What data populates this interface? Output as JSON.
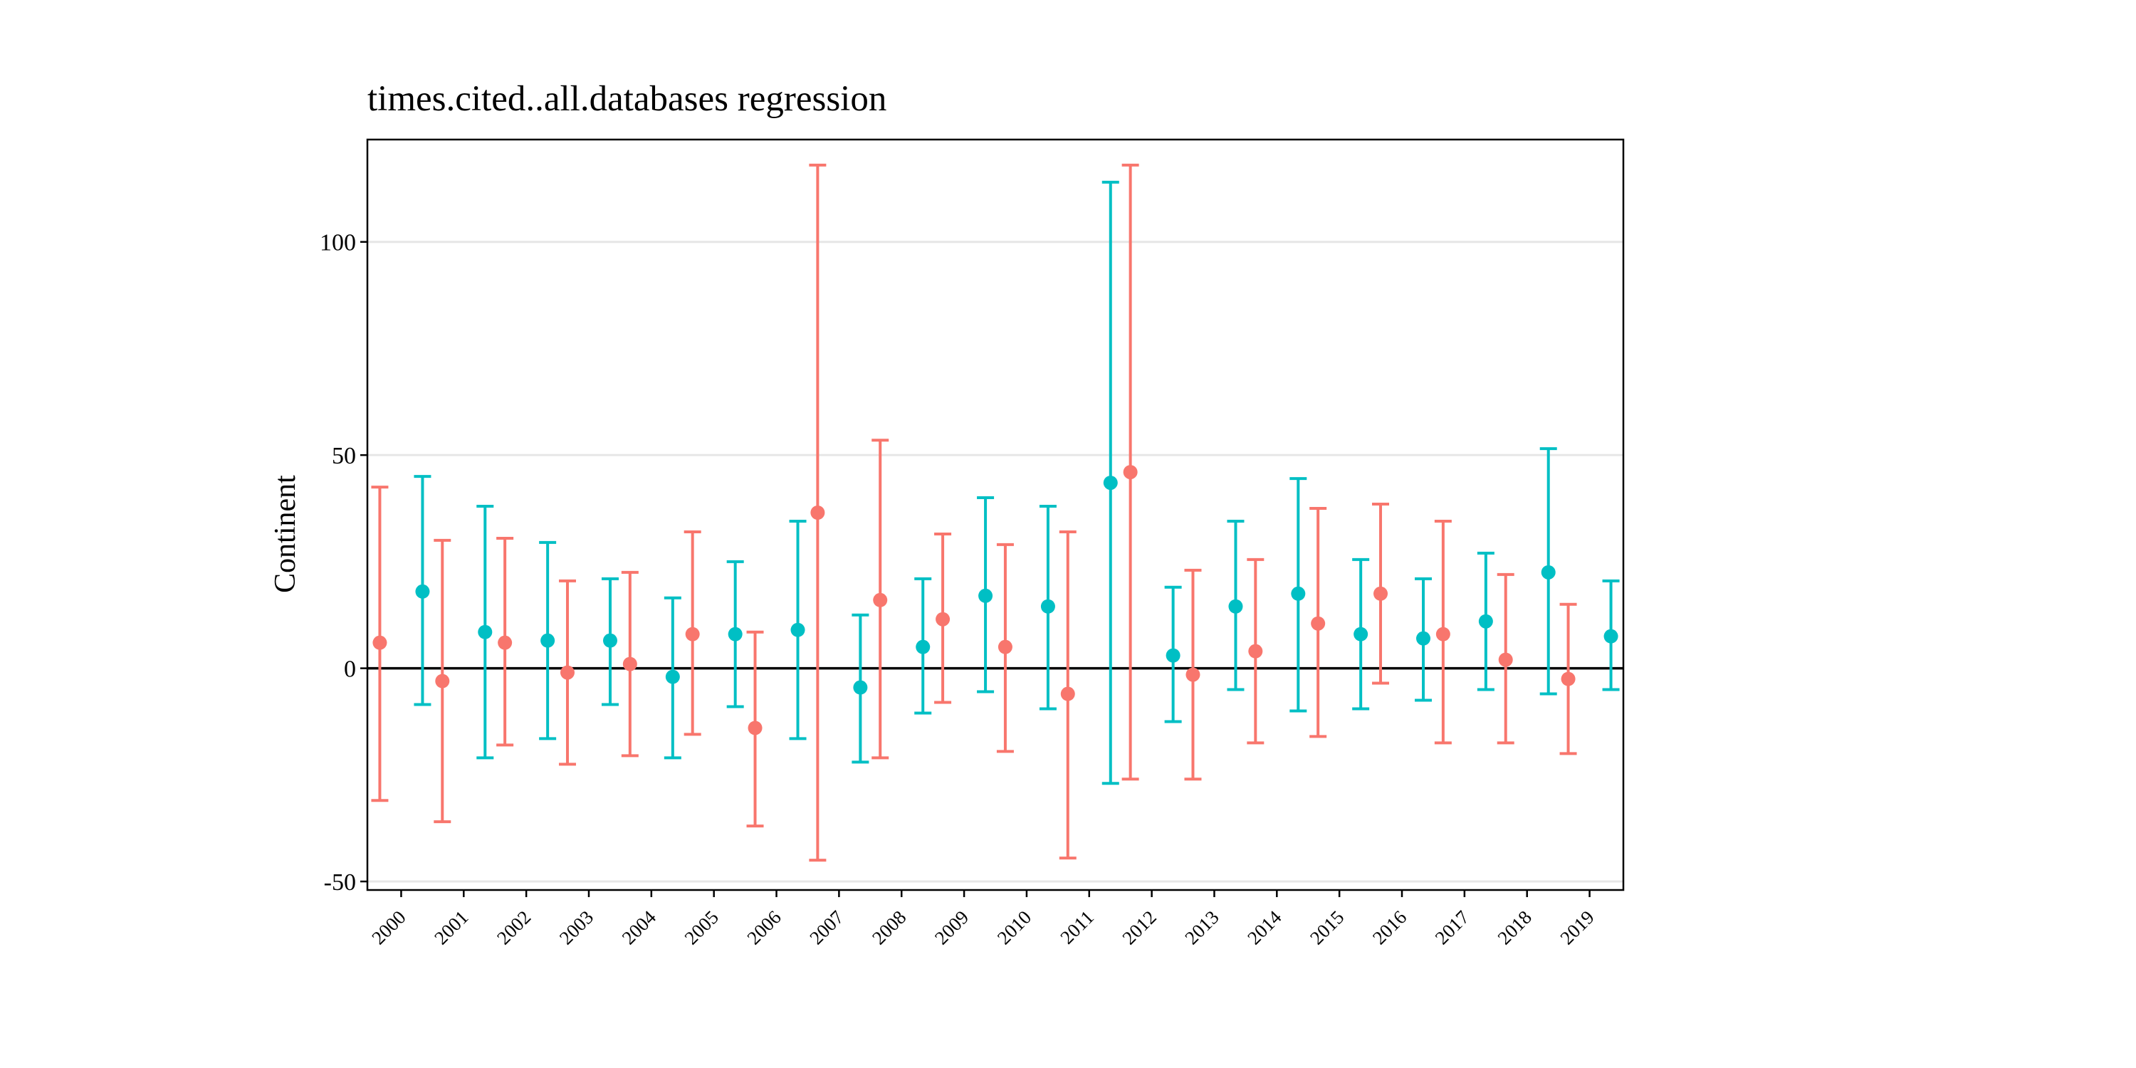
{
  "chart_data": {
    "type": "scatter",
    "subtype": "point-errorbar",
    "title": "times.cited..all.databases regression",
    "xlabel": "",
    "ylabel": "Continent",
    "categories": [
      "2000",
      "2001",
      "2002",
      "2003",
      "2004",
      "2005",
      "2006",
      "2007",
      "2008",
      "2009",
      "2010",
      "2011",
      "2012",
      "2013",
      "2014",
      "2015",
      "2016",
      "2017",
      "2018",
      "2019"
    ],
    "ylim": [
      -52,
      124
    ],
    "yticks": [
      -50,
      0,
      50,
      100
    ],
    "reference_line": 0,
    "grid": "horizontal major only",
    "legend": "none",
    "series": [
      {
        "color": "#F8766D",
        "dodge": "left",
        "values": [
          6,
          -3,
          6,
          -1,
          1,
          8,
          -14,
          36.5,
          16,
          11.5,
          5,
          -6,
          46,
          -1.5,
          4,
          10.5,
          17.5,
          8,
          2,
          -2.5
        ],
        "lower": [
          -31,
          -36,
          -18,
          -22.5,
          -20.5,
          -15.5,
          -37,
          -45,
          -21,
          -8,
          -19.5,
          -44.5,
          -26,
          -26,
          -17.5,
          -16,
          -3.5,
          -17.5,
          -17.5,
          -20
        ],
        "upper": [
          42.5,
          30,
          30.5,
          20.5,
          22.5,
          32,
          8.5,
          118,
          53.5,
          31.5,
          29,
          32,
          118,
          23,
          25.5,
          37.5,
          38.5,
          34.5,
          22,
          15
        ]
      },
      {
        "color": "#00BFC4",
        "dodge": "right",
        "values": [
          18,
          8.5,
          6.5,
          6.5,
          -2,
          8,
          9,
          -4.5,
          5,
          17,
          14.5,
          43.5,
          3,
          14.5,
          17.5,
          8,
          7,
          11,
          22.5,
          7.5
        ],
        "lower": [
          -8.5,
          -21,
          -16.5,
          -8.5,
          -21,
          -9,
          -16.5,
          -22,
          -10.5,
          -5.5,
          -9.5,
          -27,
          -12.5,
          -5,
          -10,
          -9.5,
          -7.5,
          -5,
          -6,
          -5
        ],
        "upper": [
          45,
          38,
          29.5,
          21,
          16.5,
          25,
          34.5,
          12.5,
          21,
          40,
          38,
          114,
          19,
          34.5,
          44.5,
          25.5,
          21,
          27,
          51.5,
          20.5
        ]
      }
    ]
  }
}
